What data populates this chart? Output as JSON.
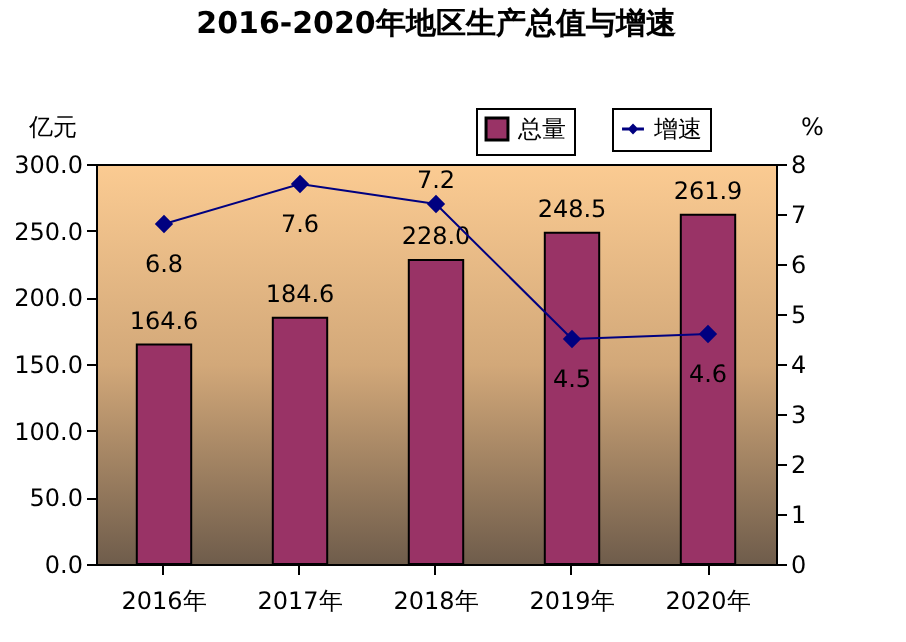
{
  "chart_data": {
    "type": "bar",
    "title": "2016-2020年地区生产总值与增速",
    "ylabel": "亿元",
    "y2label": "%",
    "categories": [
      "2016年",
      "2017年",
      "2018年",
      "2019年",
      "2020年"
    ],
    "series": [
      {
        "name": "总量",
        "color": "#993366",
        "values": [
          164.6,
          184.6,
          228.0,
          248.5,
          261.9
        ],
        "value_labels": [
          "164.6",
          "184.6",
          "228.0",
          "248.5",
          "261.9"
        ]
      },
      {
        "name": "增速",
        "type": "line",
        "axis": "y2",
        "color": "#000080",
        "marker": "diamond",
        "values": [
          6.8,
          7.6,
          7.2,
          4.5,
          4.6
        ],
        "value_labels": [
          "6.8",
          "7.6",
          "7.2",
          "4.5",
          "4.6"
        ]
      }
    ],
    "ylim": [
      0,
      300
    ],
    "yticks": [
      {
        "value": 0,
        "label": "0.0"
      },
      {
        "value": 50,
        "label": "50.0"
      },
      {
        "value": 100,
        "label": "100.0"
      },
      {
        "value": 150,
        "label": "150.0"
      },
      {
        "value": 200,
        "label": "200.0"
      },
      {
        "value": 250,
        "label": "250.0"
      },
      {
        "value": 300,
        "label": "300.0"
      }
    ],
    "y2lim": [
      0,
      8
    ],
    "y2ticks": [
      0,
      1,
      2,
      3,
      4,
      5,
      6,
      7,
      8
    ],
    "legend": "top right",
    "grid": false
  }
}
